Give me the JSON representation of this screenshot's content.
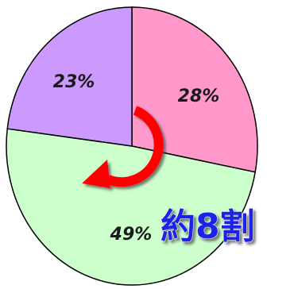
{
  "chart_data": {
    "type": "pie",
    "slices": [
      {
        "label": "28%",
        "value": 28,
        "color": "#ff99cc"
      },
      {
        "label": "49%",
        "value": 49,
        "color": "#ccffcc"
      },
      {
        "label": "23%",
        "value": 23,
        "color": "#cc99ff"
      }
    ],
    "start_angle_deg": 0,
    "direction": "clockwise",
    "outline_color": "#000000",
    "annotation": {
      "text": "約8割",
      "text_color": "#1f24e6",
      "arrow_color": "#ff0000",
      "arrow_icon": "circular-arrow-icon"
    }
  }
}
